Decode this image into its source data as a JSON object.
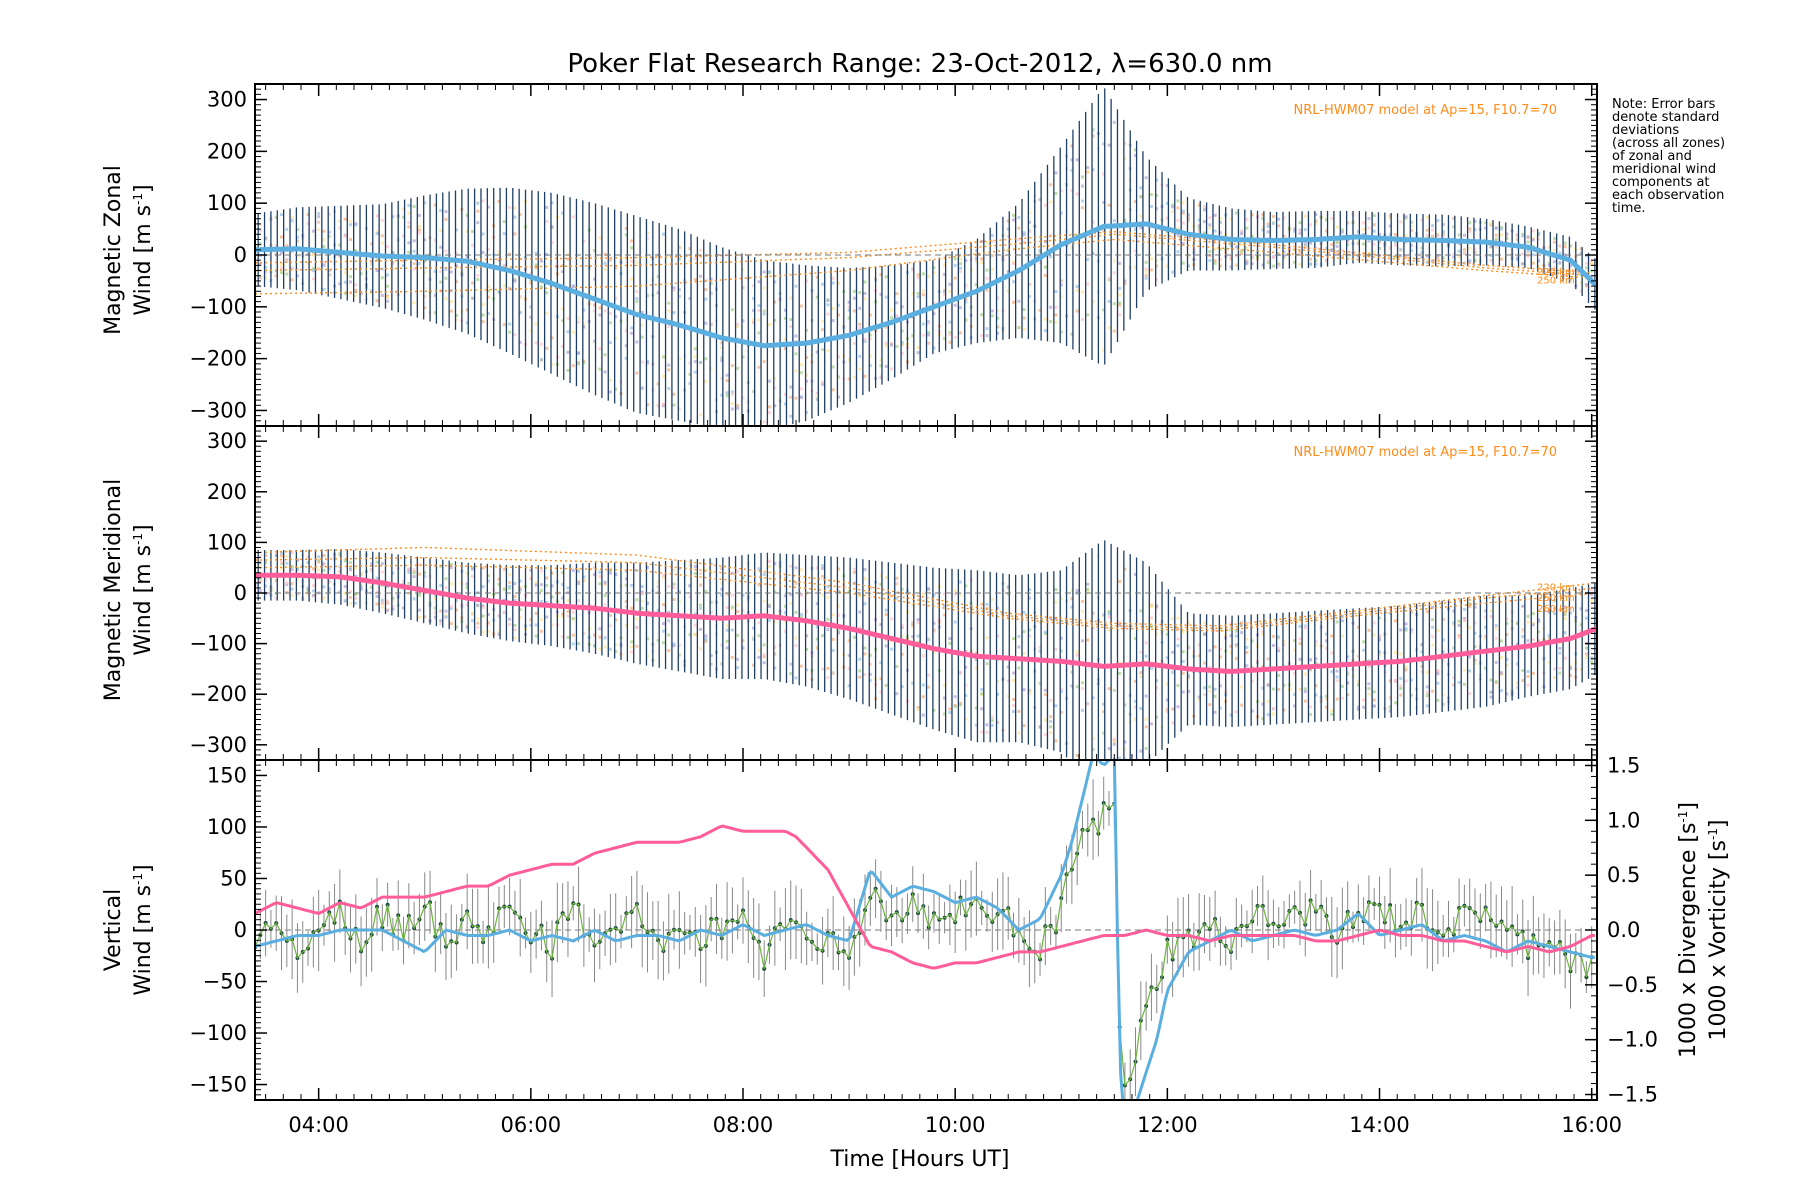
{
  "figure": {
    "title": "Poker Flat Research Range: 23-Oct-2012, λ=630.0 nm",
    "xlabel": "Time [Hours UT]",
    "x_tick_labels": [
      "04:00",
      "06:00",
      "08:00",
      "10:00",
      "12:00",
      "14:00",
      "16:00"
    ],
    "note_lines": [
      "Note: Error bars",
      "denote standard",
      "deviations",
      "(across all zones)",
      "of zonal and",
      "meridional wind",
      "components at",
      "each observation",
      "time."
    ]
  },
  "colors": {
    "zonal_mean": "#5aaee0",
    "meridional_mean": "#ff5c9a",
    "vertical": "#6cb33e",
    "divergence": "#5aaee0",
    "vorticity": "#ff5c9a",
    "errorbar": "#1f3f66",
    "model": "#ff8c1a",
    "zone_colors": [
      "#f4b183",
      "#ffe699",
      "#a9d18e",
      "#9dc3e6",
      "#b4a7d6",
      "#ffc7ce",
      "#c9e7f5"
    ]
  },
  "chart_data": [
    {
      "type": "line",
      "panel": "zonal",
      "ylabel": "Magnetic Zonal Wind [m s⁻¹]",
      "ylabel_lines": [
        "Magnetic Zonal",
        "Wind [m s",
        "-1",
        "]"
      ],
      "ylim": [
        -330,
        330
      ],
      "xlim": [
        3.4,
        16.05
      ],
      "y_tick_labels": [
        "−300",
        "−200",
        "−100",
        "0",
        "100",
        "200",
        "300"
      ],
      "model_label": "NRL-HWM07 model at Ap=15, F10.7=70",
      "model_altitude_labels": [
        "220 km",
        "250 km"
      ],
      "series": [
        {
          "name": "mean",
          "x": [
            3.4,
            3.8,
            4.2,
            4.6,
            5.0,
            5.4,
            5.8,
            6.2,
            6.6,
            7.0,
            7.4,
            7.8,
            8.2,
            8.6,
            9.0,
            9.4,
            9.8,
            10.2,
            10.6,
            11.0,
            11.4,
            11.8,
            12.2,
            12.6,
            13.0,
            13.4,
            13.8,
            14.2,
            14.6,
            15.0,
            15.4,
            15.8,
            16.05
          ],
          "y": [
            10,
            12,
            5,
            -2,
            -5,
            -12,
            -30,
            -55,
            -85,
            -115,
            -135,
            -160,
            -175,
            -170,
            -155,
            -130,
            -100,
            -70,
            -30,
            20,
            55,
            60,
            40,
            30,
            28,
            30,
            35,
            30,
            28,
            25,
            15,
            -10,
            -60
          ],
          "std": [
            70,
            80,
            90,
            100,
            120,
            140,
            160,
            175,
            185,
            190,
            185,
            175,
            165,
            150,
            130,
            110,
            90,
            100,
            130,
            190,
            270,
            130,
            70,
            60,
            55,
            55,
            50,
            50,
            50,
            45,
            40,
            45,
            50
          ]
        }
      ],
      "model_curves": [
        {
          "x": [
            3.4,
            5.0,
            7.0,
            9.0,
            10.5,
            11.5,
            13.0,
            15.0,
            16.05
          ],
          "y": [
            -15,
            -10,
            -5,
            5,
            30,
            45,
            20,
            -20,
            -35
          ]
        },
        {
          "x": [
            3.4,
            5.0,
            7.0,
            9.0,
            10.5,
            11.5,
            13.0,
            15.0,
            16.05
          ],
          "y": [
            -30,
            -25,
            -20,
            -5,
            20,
            40,
            15,
            -25,
            -40
          ]
        },
        {
          "x": [
            3.4,
            5.0,
            7.0,
            9.0,
            10.5,
            11.5,
            13.0,
            15.0,
            16.05
          ],
          "y": [
            -75,
            -70,
            -60,
            -30,
            10,
            30,
            5,
            -30,
            -45
          ]
        }
      ]
    },
    {
      "type": "line",
      "panel": "meridional",
      "ylabel": "Magnetic Meridional Wind [m s⁻¹]",
      "ylabel_lines": [
        "Magnetic Meridional",
        "Wind [m s",
        "-1",
        "]"
      ],
      "ylim": [
        -330,
        330
      ],
      "xlim": [
        3.4,
        16.05
      ],
      "y_tick_labels": [
        "−300",
        "−200",
        "−100",
        "0",
        "100",
        "200",
        "300"
      ],
      "model_label": "NRL-HWM07 model at Ap=15, F10.7=70",
      "model_altitude_labels": [
        "220 km",
        "250 km",
        "260 km"
      ],
      "series": [
        {
          "name": "mean",
          "x": [
            3.4,
            3.8,
            4.2,
            4.6,
            5.0,
            5.4,
            5.8,
            6.2,
            6.6,
            7.0,
            7.4,
            7.8,
            8.2,
            8.6,
            9.0,
            9.4,
            9.8,
            10.2,
            10.6,
            11.0,
            11.4,
            11.8,
            12.2,
            12.6,
            13.0,
            13.4,
            13.8,
            14.2,
            14.6,
            15.0,
            15.4,
            15.8,
            16.05
          ],
          "y": [
            35,
            35,
            32,
            20,
            5,
            -10,
            -20,
            -25,
            -30,
            -40,
            -45,
            -50,
            -45,
            -55,
            -70,
            -90,
            -110,
            -125,
            -130,
            -135,
            -145,
            -140,
            -150,
            -155,
            -150,
            -145,
            -140,
            -135,
            -125,
            -115,
            -105,
            -90,
            -70
          ],
          "std": [
            50,
            50,
            55,
            60,
            65,
            70,
            75,
            80,
            90,
            100,
            110,
            120,
            125,
            130,
            140,
            150,
            160,
            170,
            165,
            180,
            250,
            200,
            110,
            110,
            110,
            110,
            110,
            110,
            110,
            110,
            100,
            100,
            90
          ]
        }
      ],
      "model_curves": [
        {
          "x": [
            3.4,
            5.0,
            7.0,
            9.0,
            10.5,
            11.5,
            12.5,
            14.0,
            15.0,
            16.05
          ],
          "y": [
            80,
            90,
            75,
            20,
            -40,
            -60,
            -65,
            -30,
            -5,
            20
          ]
        },
        {
          "x": [
            3.4,
            5.0,
            7.0,
            9.0,
            10.5,
            11.5,
            12.5,
            14.0,
            15.0,
            16.05
          ],
          "y": [
            65,
            70,
            60,
            10,
            -45,
            -65,
            -70,
            -35,
            -10,
            10
          ]
        },
        {
          "x": [
            3.4,
            5.0,
            7.0,
            9.0,
            10.5,
            11.5,
            12.5,
            14.0,
            15.0,
            16.05
          ],
          "y": [
            50,
            55,
            45,
            0,
            -50,
            -70,
            -75,
            -40,
            -20,
            0
          ]
        }
      ]
    },
    {
      "type": "line",
      "panel": "vertical",
      "ylabel_left_lines": [
        "Vertical",
        "Wind [m s",
        "-1",
        "]"
      ],
      "ylabel_right1_lines": [
        "1000 x Divergence [s",
        "-1",
        "]"
      ],
      "ylabel_right2_lines": [
        "1000 x Vorticity [s",
        "-1",
        "]"
      ],
      "ylim": [
        -165,
        165
      ],
      "y2lim": [
        -1.55,
        1.55
      ],
      "xlim": [
        3.4,
        16.05
      ],
      "y_tick_labels": [
        "−150",
        "−100",
        "−50",
        "0",
        "50",
        "100",
        "150"
      ],
      "y2_tick_labels": [
        "−1.5",
        "−1.0",
        "−0.5",
        "0.0",
        "0.5",
        "1.0",
        "1.5"
      ],
      "series": [
        {
          "name": "Vertical Wind",
          "axis": "left",
          "x": [
            3.4,
            3.6,
            3.8,
            4.0,
            4.2,
            4.4,
            4.6,
            4.8,
            5.0,
            5.2,
            5.4,
            5.6,
            5.8,
            6.0,
            6.2,
            6.4,
            6.6,
            6.8,
            7.0,
            7.2,
            7.4,
            7.6,
            7.8,
            8.0,
            8.2,
            8.4,
            8.6,
            8.8,
            9.0,
            9.2,
            9.4,
            9.6,
            9.8,
            10.0,
            10.2,
            10.4,
            10.6,
            10.8,
            11.0,
            11.1,
            11.2,
            11.3,
            11.4,
            11.5,
            11.55,
            11.6,
            11.7,
            11.8,
            11.9,
            12.0,
            12.2,
            12.4,
            12.6,
            12.8,
            13.0,
            13.2,
            13.4,
            13.6,
            13.8,
            14.0,
            14.2,
            14.4,
            14.6,
            14.8,
            15.0,
            15.2,
            15.4,
            15.6,
            15.8,
            16.0
          ],
          "y": [
            -5,
            10,
            -15,
            5,
            20,
            -10,
            15,
            0,
            30,
            -20,
            10,
            -5,
            25,
            0,
            -15,
            20,
            -10,
            5,
            15,
            -20,
            10,
            -10,
            5,
            15,
            -25,
            10,
            0,
            -10,
            -30,
            40,
            10,
            30,
            5,
            20,
            25,
            10,
            5,
            -15,
            20,
            60,
            90,
            95,
            110,
            120,
            -100,
            -160,
            -120,
            -80,
            -50,
            -20,
            -10,
            0,
            -10,
            15,
            5,
            10,
            20,
            0,
            10,
            20,
            5,
            15,
            0,
            10,
            20,
            -5,
            -15,
            -5,
            -30,
            -40
          ]
        },
        {
          "name": "Divergence",
          "axis": "right",
          "x": [
            3.4,
            3.6,
            3.8,
            4.0,
            4.2,
            4.4,
            4.6,
            4.8,
            5.0,
            5.2,
            5.4,
            5.6,
            5.8,
            6.0,
            6.2,
            6.4,
            6.6,
            6.8,
            7.0,
            7.2,
            7.4,
            7.6,
            7.8,
            8.0,
            8.2,
            8.4,
            8.6,
            8.8,
            9.0,
            9.2,
            9.4,
            9.6,
            9.8,
            10.0,
            10.2,
            10.4,
            10.6,
            10.8,
            11.0,
            11.1,
            11.2,
            11.3,
            11.4,
            11.5,
            11.55,
            11.6,
            11.7,
            11.8,
            11.9,
            12.0,
            12.2,
            12.4,
            12.6,
            12.8,
            13.0,
            13.2,
            13.4,
            13.6,
            13.8,
            14.0,
            14.2,
            14.4,
            14.6,
            14.8,
            15.0,
            15.2,
            15.4,
            15.6,
            15.8,
            16.0
          ],
          "y": [
            -0.15,
            -0.1,
            -0.05,
            -0.05,
            0.0,
            0.0,
            0.0,
            -0.1,
            -0.2,
            0.0,
            -0.05,
            -0.05,
            0.0,
            -0.1,
            -0.05,
            -0.1,
            0.0,
            -0.1,
            -0.05,
            -0.05,
            -0.1,
            0.0,
            -0.05,
            0.05,
            -0.05,
            0.0,
            0.05,
            -0.05,
            -0.1,
            0.55,
            0.3,
            0.4,
            0.35,
            0.25,
            0.3,
            0.2,
            0.0,
            0.1,
            0.5,
            0.8,
            1.2,
            1.6,
            1.5,
            1.6,
            -1.2,
            -1.8,
            -1.6,
            -1.3,
            -1.0,
            -0.55,
            -0.2,
            -0.1,
            0.0,
            -0.1,
            -0.05,
            0.0,
            -0.05,
            0.0,
            0.15,
            -0.05,
            0.0,
            0.05,
            -0.1,
            -0.05,
            -0.1,
            -0.2,
            -0.1,
            -0.15,
            -0.2,
            -0.25
          ]
        },
        {
          "name": "Vorticity",
          "axis": "right",
          "x": [
            3.4,
            3.6,
            3.8,
            4.0,
            4.2,
            4.4,
            4.6,
            4.8,
            5.0,
            5.2,
            5.4,
            5.6,
            5.8,
            6.0,
            6.2,
            6.4,
            6.6,
            6.8,
            7.0,
            7.2,
            7.4,
            7.6,
            7.8,
            8.0,
            8.2,
            8.4,
            8.5,
            8.8,
            9.0,
            9.2,
            9.4,
            9.6,
            9.8,
            10.0,
            10.2,
            10.4,
            10.6,
            10.8,
            11.0,
            11.2,
            11.4,
            11.6,
            11.8,
            12.0,
            12.2,
            12.4,
            12.6,
            12.8,
            13.0,
            13.2,
            13.4,
            13.6,
            13.8,
            14.0,
            14.2,
            14.4,
            14.6,
            14.8,
            15.0,
            15.2,
            15.4,
            15.6,
            15.8,
            16.0
          ],
          "y": [
            0.15,
            0.25,
            0.2,
            0.15,
            0.25,
            0.2,
            0.3,
            0.3,
            0.3,
            0.35,
            0.4,
            0.4,
            0.5,
            0.55,
            0.6,
            0.6,
            0.7,
            0.75,
            0.8,
            0.8,
            0.8,
            0.85,
            0.95,
            0.9,
            0.9,
            0.9,
            0.85,
            0.55,
            0.2,
            -0.15,
            -0.2,
            -0.3,
            -0.35,
            -0.3,
            -0.3,
            -0.25,
            -0.2,
            -0.2,
            -0.15,
            -0.1,
            -0.05,
            -0.05,
            0.0,
            -0.05,
            -0.05,
            -0.1,
            -0.05,
            -0.05,
            -0.05,
            -0.05,
            -0.1,
            -0.1,
            -0.05,
            0.0,
            -0.05,
            -0.05,
            -0.1,
            -0.1,
            -0.15,
            -0.2,
            -0.15,
            -0.2,
            -0.15,
            -0.05
          ]
        }
      ]
    }
  ]
}
